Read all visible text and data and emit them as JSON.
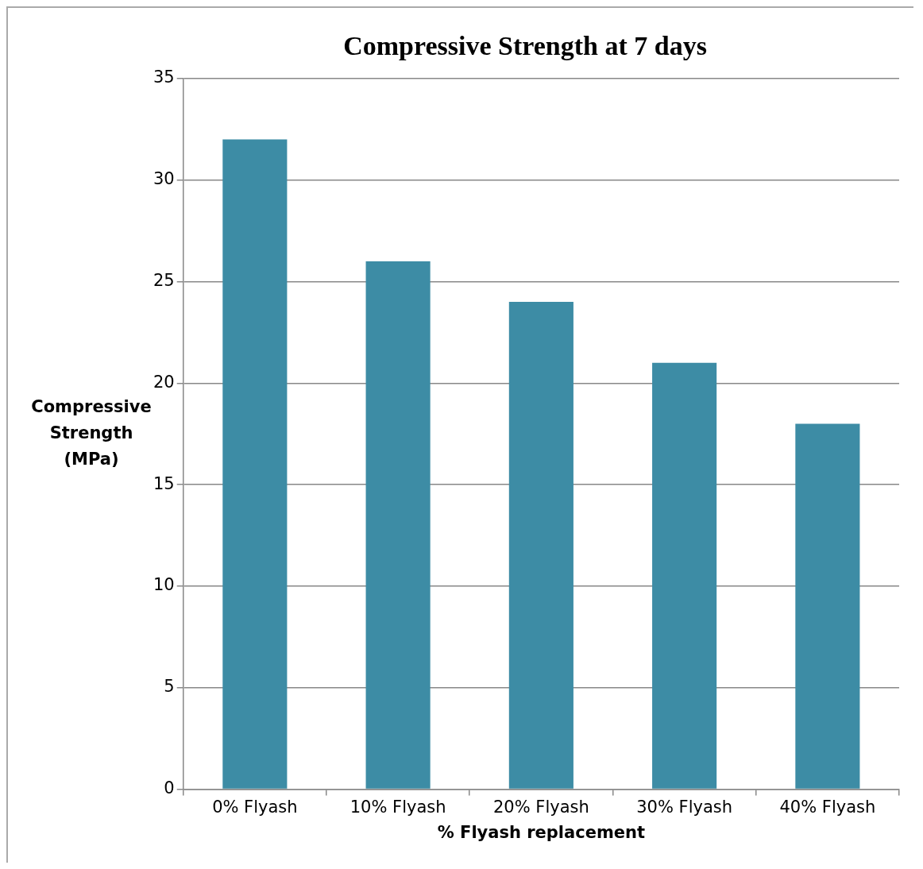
{
  "chart_data": {
    "type": "bar",
    "title": "Compressive Strength at 7 days",
    "xlabel": "% Flyash replacement",
    "ylabel": "Compressive Strength (MPa)",
    "categories": [
      "0% Flyash",
      "10% Flyash",
      "20% Flyash",
      "30% Flyash",
      "40% Flyash"
    ],
    "values": [
      32,
      26,
      24,
      21,
      18
    ],
    "color": "#3d8ca5",
    "ylim": [
      0,
      35
    ],
    "yticks": [
      0,
      5,
      10,
      15,
      20,
      25,
      30,
      35
    ],
    "grid": "y",
    "legend": false
  }
}
